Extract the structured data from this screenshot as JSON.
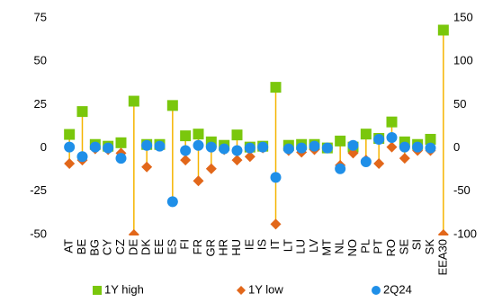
{
  "chart_data": {
    "type": "range",
    "categories": [
      "AT",
      "BE",
      "BG",
      "CY",
      "CZ",
      "DE",
      "DK",
      "EE",
      "ES",
      "FI",
      "FR",
      "GR",
      "HR",
      "HU",
      "IE",
      "IS",
      "IT",
      "LT",
      "LU",
      "LV",
      "MT",
      "NL",
      "NO",
      "PL",
      "PT",
      "RO",
      "SE",
      "SI",
      "SK",
      "EEA30"
    ],
    "series": [
      {
        "name": "1Y high",
        "color": "#7ac70c",
        "marker": "square",
        "values": [
          7.8,
          21,
          2,
          1,
          3,
          27,
          2,
          2,
          24.5,
          7,
          8,
          3.5,
          1.5,
          7.5,
          0.5,
          1,
          35,
          1.5,
          2,
          2,
          0,
          4,
          0.5,
          8,
          5.5,
          15,
          3.5,
          2,
          5,
          68
        ]
      },
      {
        "name": "1Y low",
        "color": "#e2671a",
        "marker": "diamond",
        "values": [
          -9,
          -7,
          -0.5,
          -1,
          -3,
          -50,
          -11,
          1,
          -31,
          -7,
          -19,
          -12,
          -1,
          -7,
          -5,
          0,
          -44,
          -1.5,
          -2.5,
          -1,
          0,
          -10,
          -3,
          -7,
          -9,
          0.5,
          -6,
          -1.5,
          -1.5,
          -50
        ]
      },
      {
        "name": "2Q24",
        "color": "#1f8fe8",
        "marker": "circle",
        "values": [
          0.5,
          -5,
          0.5,
          0,
          -6,
          null,
          1.5,
          1,
          -31,
          -1.5,
          1.5,
          0.5,
          -0.5,
          -1.5,
          0,
          0.5,
          -17,
          -0.5,
          0,
          1,
          0,
          -12,
          1.5,
          -8,
          5,
          6,
          0.5,
          0.5,
          0,
          null
        ]
      }
    ],
    "range_color": "#f5b400",
    "ylim": [
      -50,
      75
    ],
    "yticks": [
      -50,
      -25,
      0,
      25,
      50,
      75
    ],
    "y2lim": [
      -100,
      150
    ],
    "y2ticks": [
      -100,
      -50,
      0,
      50,
      100,
      150
    ],
    "legend": "bottom"
  }
}
